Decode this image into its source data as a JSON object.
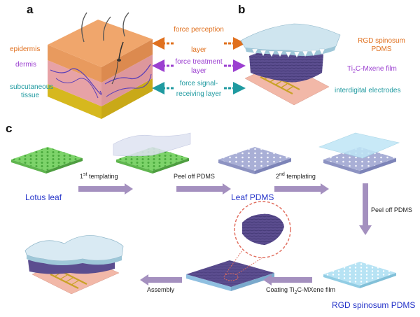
{
  "panels": {
    "a": "a",
    "b": "b",
    "c": "c"
  },
  "skin_labels": {
    "epidermis": "epidermis",
    "dermis": "dermis",
    "subcutaneous_1": "subcutaneous",
    "subcutaneous_2": "tissue"
  },
  "layer_labels": {
    "force_perception_1": "force perception",
    "force_perception_2": "layer",
    "force_treatment_1": "force treatment",
    "force_treatment_2": "layer",
    "force_signal_1": "force signal-",
    "force_signal_2": "receiving layer"
  },
  "device_labels": {
    "rgd_1": "RGD spinosum",
    "rgd_2": "PDMS",
    "mxene_pre": "Ti",
    "mxene_sub": "2",
    "mxene_post": "C-Mxene film",
    "electrodes": "interdigital electrodes"
  },
  "process_labels": {
    "lotus_leaf": "Lotus leaf",
    "templating1_pre": "1",
    "templating1_sup": "st",
    "templating1_post": " templating",
    "peel_off_pdms": "Peel off PDMS",
    "leaf_pdms": "Leaf PDMS",
    "templating2_pre": "2",
    "templating2_sup": "nd",
    "templating2_post": "  templating",
    "peel_off_pdms_2": "Peel off PDMS",
    "rgd_spinosum_pdms": "RGD spinosum PDMS",
    "coating_pre": "Coating Ti",
    "coating_sub": "2",
    "coating_post": "C-MXene film",
    "assembly": "Assembly"
  },
  "colors": {
    "epidermis": "#e8935a",
    "dermis": "#e9a8a8",
    "subcutaneous": "#e4c92c",
    "orange_label": "#e0701e",
    "purple_label": "#9b3fd0",
    "teal_label": "#1f9aa0",
    "blue_label": "#2433c9",
    "green_leaf": "#7dd36a",
    "leaf_pdms": "#a9afd6",
    "rgd_pdms": "#b7e3f4",
    "mxene": "#5b4d8f",
    "electrode": "#c9a227",
    "substrate": "#f2b8a8",
    "process_arrow": "#a490bf"
  }
}
